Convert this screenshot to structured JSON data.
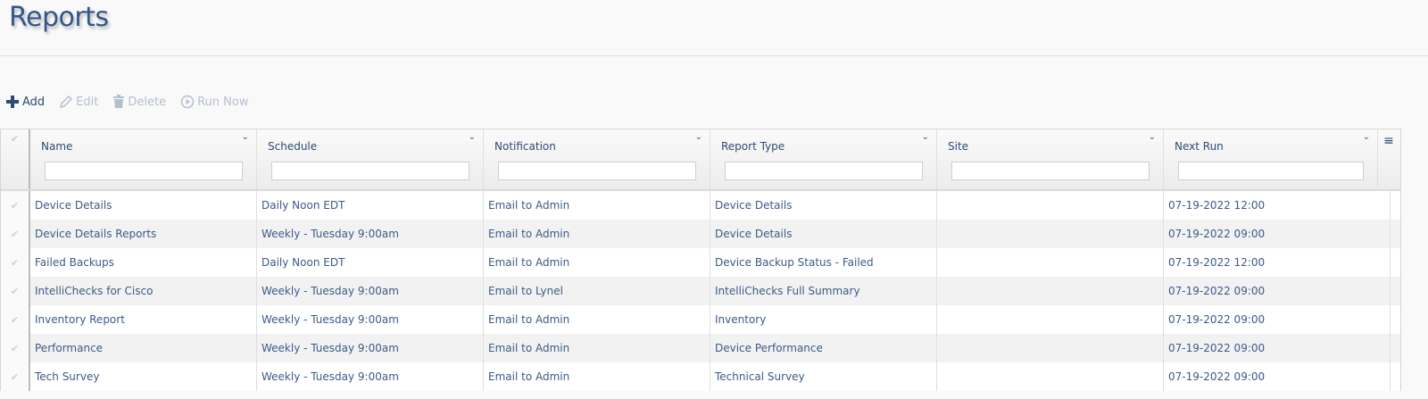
{
  "page": {
    "title": "Reports"
  },
  "toolbar": {
    "add": "Add",
    "edit": "Edit",
    "delete": "Delete",
    "run_now": "Run Now"
  },
  "grid": {
    "columns": [
      {
        "label": "Name"
      },
      {
        "label": "Schedule"
      },
      {
        "label": "Notification"
      },
      {
        "label": "Report Type"
      },
      {
        "label": "Site"
      },
      {
        "label": "Next Run"
      }
    ],
    "rows": [
      {
        "name": "Device Details",
        "schedule": "Daily Noon EDT",
        "notification": "Email to Admin",
        "report_type": "Device Details",
        "site": "",
        "next_run": "07-19-2022 12:00"
      },
      {
        "name": "Device Details Reports",
        "schedule": "Weekly - Tuesday 9:00am",
        "notification": "Email to Admin",
        "report_type": "Device Details",
        "site": "",
        "next_run": "07-19-2022 09:00"
      },
      {
        "name": "Failed Backups",
        "schedule": "Daily Noon EDT",
        "notification": "Email to Admin",
        "report_type": "Device Backup Status - Failed",
        "site": "",
        "next_run": "07-19-2022 12:00"
      },
      {
        "name": "IntelliChecks for Cisco",
        "schedule": "Weekly - Tuesday 9:00am",
        "notification": "Email to Lynel",
        "report_type": "IntelliChecks Full Summary",
        "site": "",
        "next_run": "07-19-2022 09:00"
      },
      {
        "name": "Inventory Report",
        "schedule": "Weekly - Tuesday 9:00am",
        "notification": "Email to Admin",
        "report_type": "Inventory",
        "site": "",
        "next_run": "07-19-2022 09:00"
      },
      {
        "name": "Performance",
        "schedule": "Weekly - Tuesday 9:00am",
        "notification": "Email to Admin",
        "report_type": "Device Performance",
        "site": "",
        "next_run": "07-19-2022 09:00"
      },
      {
        "name": "Tech Survey",
        "schedule": "Weekly - Tuesday 9:00am",
        "notification": "Email to Admin",
        "report_type": "Technical Survey",
        "site": "",
        "next_run": "07-19-2022 09:00"
      }
    ]
  }
}
